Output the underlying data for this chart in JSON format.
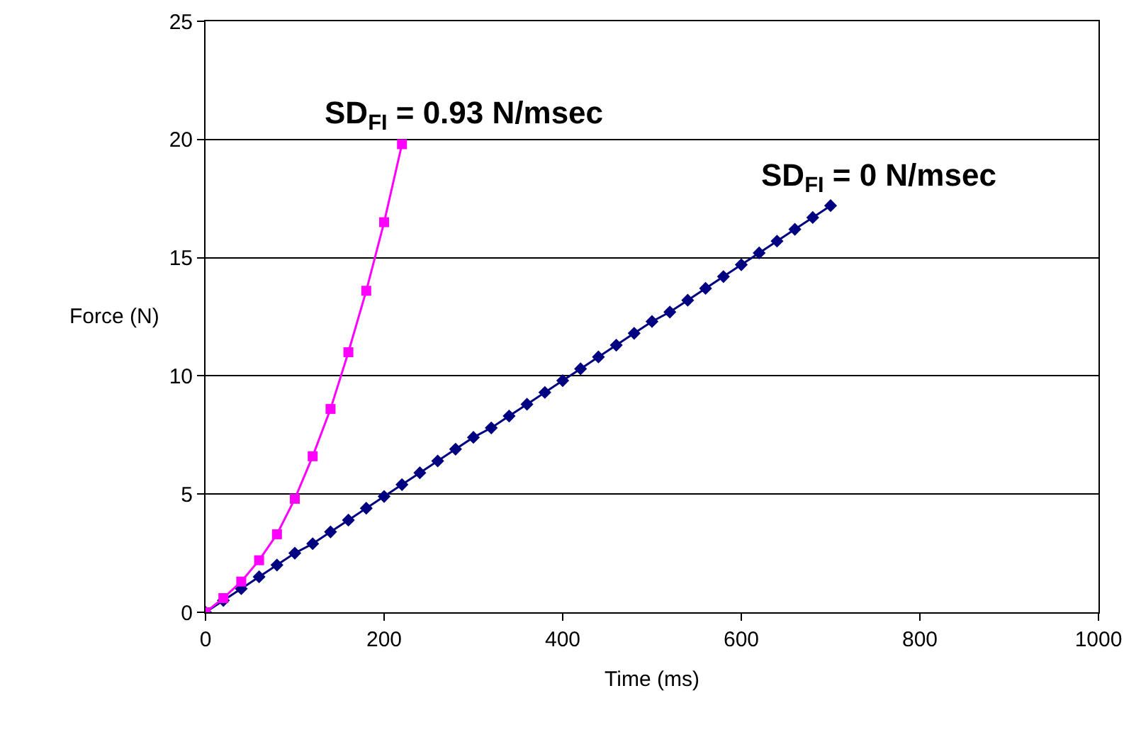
{
  "chart_data": {
    "type": "line",
    "xlabel": "Time (ms)",
    "ylabel": "Force (N)",
    "xlim": [
      0,
      1000
    ],
    "xticks": [
      0,
      200,
      400,
      600,
      800,
      1000
    ],
    "ylim": [
      0,
      25
    ],
    "yticks": [
      0,
      5,
      10,
      15,
      20,
      25
    ],
    "grid": "y",
    "legend": false,
    "series": [
      {
        "color": "#ff00ff",
        "marker": "square",
        "x": [
          0,
          20,
          40,
          60,
          80,
          100,
          120,
          140,
          160,
          180,
          200,
          220
        ],
        "values": [
          0,
          0.6,
          1.3,
          2.2,
          3.3,
          4.8,
          6.6,
          8.6,
          11.0,
          13.6,
          16.5,
          19.8
        ]
      },
      {
        "color": "#000080",
        "marker": "diamond",
        "x": [
          0,
          20,
          40,
          60,
          80,
          100,
          120,
          140,
          160,
          180,
          200,
          220,
          240,
          260,
          280,
          300,
          320,
          340,
          360,
          380,
          400,
          420,
          440,
          460,
          480,
          500,
          520,
          540,
          560,
          580,
          600,
          620,
          640,
          660,
          680,
          700
        ],
        "values": [
          0,
          0.5,
          1.0,
          1.5,
          2.0,
          2.5,
          2.9,
          3.4,
          3.9,
          4.4,
          4.9,
          5.4,
          5.9,
          6.4,
          6.9,
          7.4,
          7.8,
          8.3,
          8.8,
          9.3,
          9.8,
          10.3,
          10.8,
          11.3,
          11.8,
          12.3,
          12.7,
          13.2,
          13.7,
          14.2,
          14.7,
          15.2,
          15.7,
          16.2,
          16.7,
          17.2
        ]
      }
    ],
    "annotations": [
      "SD$_{FI}$ = 0.93 N/msec",
      "SD$_{FI}$ = 0 N/msec"
    ]
  }
}
